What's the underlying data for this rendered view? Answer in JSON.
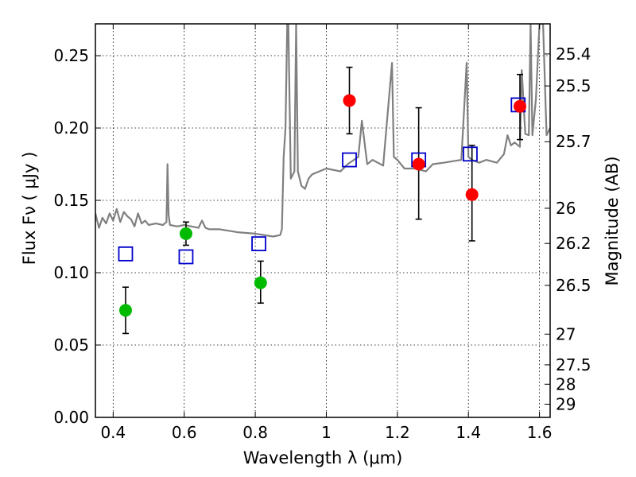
{
  "chart_data": {
    "type": "scatter",
    "title": "",
    "xlabel": "Wavelength  λ (μm)",
    "ylabel": "Flux  Fν  ( μJy )",
    "y2label": "Magnitude (AB)",
    "xlim": [
      0.35,
      1.63
    ],
    "ylim": [
      0.0,
      0.272
    ],
    "grid": true,
    "x_ticks": [
      0.4,
      0.6,
      0.8,
      1.0,
      1.2,
      1.4,
      1.6
    ],
    "x_tick_labels": [
      "0.4",
      "0.6",
      "0.8",
      "1",
      "1.2",
      "1.4",
      "1.6"
    ],
    "y_ticks": [
      0.0,
      0.05,
      0.1,
      0.15,
      0.2,
      0.25
    ],
    "y_tick_labels": [
      "0.00",
      "0.05",
      "0.10",
      "0.15",
      "0.20",
      "0.25"
    ],
    "mag_ticks": [
      25.4,
      25.5,
      25.7,
      26,
      26.2,
      26.5,
      27,
      27.5,
      28,
      29
    ],
    "mag_tick_labels": [
      "25.4",
      "25.5",
      "25.7",
      "26",
      "26.2",
      "26.5",
      "27",
      "27.5",
      "28",
      "29"
    ],
    "series": [
      {
        "marker": "circle",
        "color": "#00bb00",
        "x": [
          0.435,
          0.605,
          0.815
        ],
        "y": [
          0.074,
          0.127,
          0.093
        ],
        "yerr_low": [
          0.016,
          0.008,
          0.014
        ],
        "yerr_high": [
          0.016,
          0.008,
          0.015
        ]
      },
      {
        "marker": "circle",
        "color": "#ff0000",
        "x": [
          1.065,
          1.26,
          1.41,
          1.545
        ],
        "y": [
          0.219,
          0.175,
          0.154,
          0.215
        ],
        "yerr_low": [
          0.023,
          0.038,
          0.032,
          0.023
        ],
        "yerr_high": [
          0.023,
          0.039,
          0.034,
          0.022
        ]
      },
      {
        "marker": "square-open",
        "color": "#0000cc",
        "x": [
          0.435,
          0.605,
          0.81,
          1.065,
          1.26,
          1.405,
          1.54
        ],
        "y": [
          0.113,
          0.111,
          0.12,
          0.178,
          0.178,
          0.182,
          0.216
        ]
      },
      {
        "marker": "line",
        "color": "#808080",
        "x": [
          0.35,
          0.36,
          0.37,
          0.38,
          0.39,
          0.4,
          0.41,
          0.42,
          0.43,
          0.44,
          0.45,
          0.46,
          0.47,
          0.48,
          0.49,
          0.5,
          0.52,
          0.54,
          0.55,
          0.553,
          0.556,
          0.56,
          0.58,
          0.6,
          0.62,
          0.64,
          0.65,
          0.66,
          0.67,
          0.7,
          0.75,
          0.8,
          0.85,
          0.87,
          0.875,
          0.88,
          0.885,
          0.89,
          0.893,
          0.9,
          0.91,
          0.915,
          0.92,
          0.93,
          0.94,
          0.95,
          0.96,
          0.98,
          1.0,
          1.04,
          1.06,
          1.09,
          1.1,
          1.115,
          1.13,
          1.16,
          1.185,
          1.19,
          1.2,
          1.22,
          1.25,
          1.28,
          1.3,
          1.33,
          1.38,
          1.395,
          1.4,
          1.41,
          1.43,
          1.45,
          1.48,
          1.5,
          1.51,
          1.52,
          1.53,
          1.545,
          1.55,
          1.56,
          1.57,
          1.575,
          1.58,
          1.59,
          1.6,
          1.61,
          1.62,
          1.63
        ],
        "y": [
          0.141,
          0.131,
          0.138,
          0.134,
          0.141,
          0.136,
          0.144,
          0.135,
          0.142,
          0.139,
          0.137,
          0.132,
          0.141,
          0.134,
          0.136,
          0.133,
          0.134,
          0.133,
          0.135,
          0.175,
          0.14,
          0.133,
          0.132,
          0.133,
          0.132,
          0.131,
          0.136,
          0.131,
          0.13,
          0.13,
          0.128,
          0.127,
          0.125,
          0.126,
          0.13,
          0.18,
          0.2,
          0.272,
          0.272,
          0.165,
          0.17,
          0.272,
          0.17,
          0.16,
          0.158,
          0.165,
          0.168,
          0.17,
          0.172,
          0.17,
          0.175,
          0.18,
          0.205,
          0.175,
          0.178,
          0.174,
          0.245,
          0.18,
          0.178,
          0.172,
          0.172,
          0.17,
          0.175,
          0.176,
          0.178,
          0.245,
          0.18,
          0.178,
          0.176,
          0.178,
          0.176,
          0.182,
          0.195,
          0.188,
          0.19,
          0.187,
          0.24,
          0.196,
          0.195,
          0.272,
          0.195,
          0.22,
          0.272,
          0.272,
          0.195,
          0.2
        ]
      }
    ]
  }
}
